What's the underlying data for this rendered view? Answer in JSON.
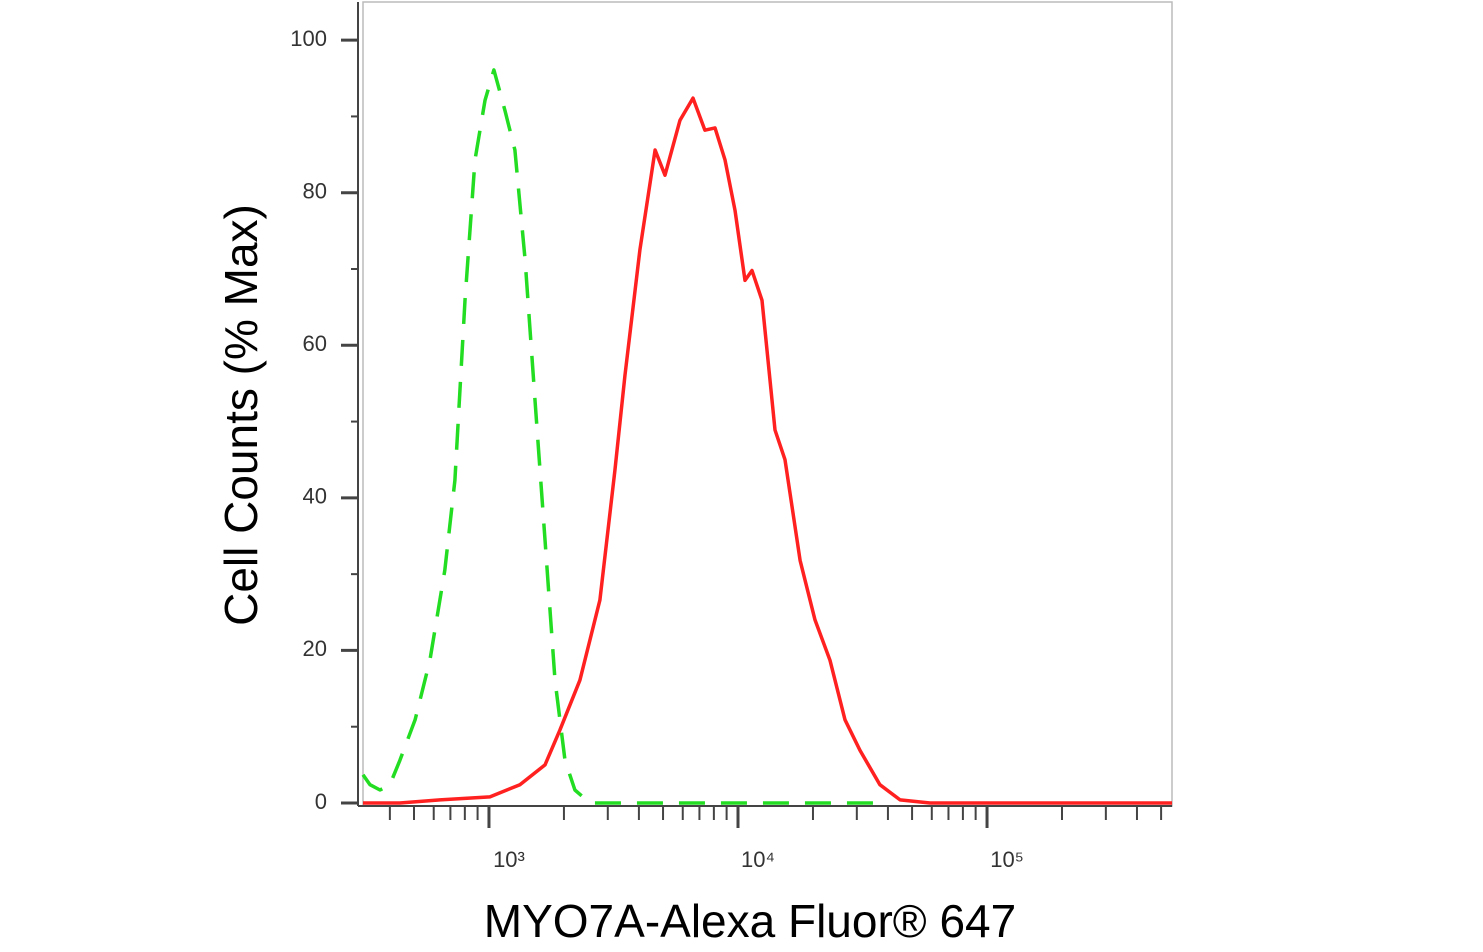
{
  "chart_data": {
    "type": "line",
    "xlabel": "MYO7A-Alexa Fluor® 647",
    "ylabel": "Cell Counts (% Max)",
    "xscale": "log",
    "xlim": [
      312,
      553000
    ],
    "ylim": [
      0,
      105
    ],
    "xticks": [
      {
        "value": 1000,
        "label": "10³"
      },
      {
        "value": 10000,
        "label": "10⁴"
      },
      {
        "value": 100000,
        "label": "10⁵"
      }
    ],
    "xminorticks": [
      400,
      500,
      600,
      700,
      800,
      900,
      2000,
      3000,
      4000,
      5000,
      6000,
      7000,
      8000,
      9000,
      20000,
      30000,
      40000,
      50000,
      60000,
      70000,
      80000,
      90000,
      200000,
      300000,
      400000,
      500000
    ],
    "yticks": [
      0,
      20,
      40,
      60,
      80,
      100
    ],
    "yminorticks": [
      10,
      30,
      50,
      70,
      90
    ],
    "series": [
      {
        "color": "#22dd22",
        "dashed": true,
        "x": [
          312,
          333,
          365,
          400,
          439,
          505,
          579,
          665,
          730,
          801,
          879,
          964,
          1047,
          1159,
          1271,
          1396,
          1531,
          1679,
          1842,
          2019,
          2214,
          2546,
          7030,
          37150
        ],
        "values": [
          3.7,
          2.4,
          1.7,
          2.4,
          5.6,
          10.9,
          18.7,
          30.5,
          42.3,
          65.9,
          84.3,
          92.1,
          96.1,
          90.8,
          85.6,
          71.2,
          52.8,
          34.5,
          16.1,
          5.6,
          1.7,
          0,
          0,
          0
        ]
      },
      {
        "color": "#ff2020",
        "dashed": false,
        "x": [
          312,
          439,
          635,
          1009,
          1331,
          1679,
          1928,
          2317,
          2790,
          3204,
          3516,
          4036,
          4645,
          5093,
          5848,
          6595,
          7362,
          8087,
          8867,
          9727,
          10670,
          11380,
          12480,
          14080,
          15440,
          17750,
          20380,
          23400,
          26900,
          30900,
          37150,
          44750,
          59000,
          112700,
          553000
        ],
        "values": [
          0,
          0,
          0.4,
          0.8,
          2.4,
          5,
          9.6,
          16.1,
          26.6,
          43.6,
          56.1,
          72.5,
          85.6,
          82.3,
          89.5,
          92.4,
          88.2,
          88.5,
          84.3,
          77.7,
          68.5,
          69.8,
          65.9,
          48.9,
          45,
          31.8,
          24,
          18.7,
          10.9,
          6.9,
          2.4,
          0.4,
          0,
          0,
          0
        ]
      }
    ]
  }
}
